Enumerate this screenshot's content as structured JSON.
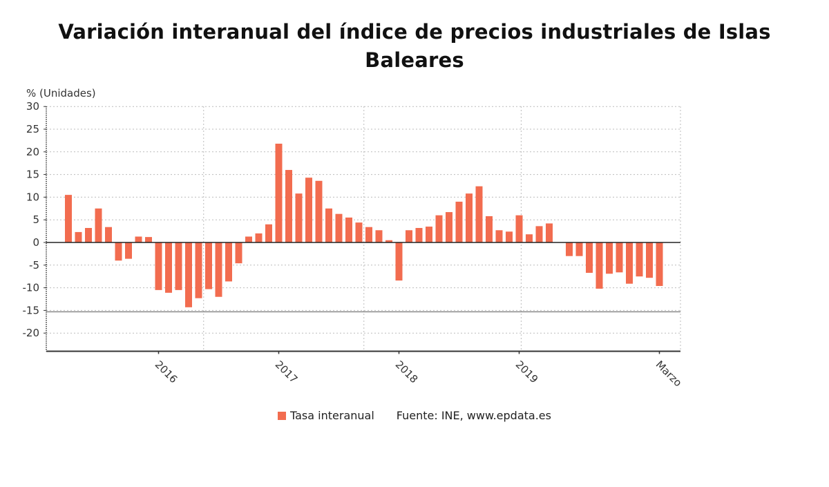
{
  "chart_data": {
    "type": "bar",
    "title": "Variación interanual del índice de precios industriales de Islas Baleares",
    "ylabel": "% (Unidades)",
    "xlabel": "",
    "ylim": [
      -24,
      30
    ],
    "yticks": [
      30,
      25,
      20,
      15,
      10,
      5,
      0,
      -5,
      -10,
      -15,
      -20
    ],
    "grid": true,
    "legend_position": "bottom",
    "x_start": "2015-04",
    "x_end": "2020-03",
    "xtick_labels": [
      {
        "label": "2016",
        "index": 9
      },
      {
        "label": "2017",
        "index": 21
      },
      {
        "label": "2018",
        "index": 33
      },
      {
        "label": "2019",
        "index": 45
      },
      {
        "label": "Marzo",
        "index": 59
      }
    ],
    "x": [
      "2015-04",
      "2015-05",
      "2015-06",
      "2015-07",
      "2015-08",
      "2015-09",
      "2015-10",
      "2015-11",
      "2015-12",
      "2016-01",
      "2016-02",
      "2016-03",
      "2016-04",
      "2016-05",
      "2016-06",
      "2016-07",
      "2016-08",
      "2016-09",
      "2016-10",
      "2016-11",
      "2016-12",
      "2017-01",
      "2017-02",
      "2017-03",
      "2017-04",
      "2017-05",
      "2017-06",
      "2017-07",
      "2017-08",
      "2017-09",
      "2017-10",
      "2017-11",
      "2017-12",
      "2018-01",
      "2018-02",
      "2018-03",
      "2018-04",
      "2018-05",
      "2018-06",
      "2018-07",
      "2018-08",
      "2018-09",
      "2018-10",
      "2018-11",
      "2018-12",
      "2019-01",
      "2019-02",
      "2019-03",
      "2019-04",
      "2019-05",
      "2019-06",
      "2019-07",
      "2019-08",
      "2019-09",
      "2019-10",
      "2019-11",
      "2019-12",
      "2020-01",
      "2020-02",
      "2020-03"
    ],
    "series": [
      {
        "name": "Tasa interanual",
        "color": "#f26c4f",
        "values": [
          10.5,
          2.3,
          3.2,
          7.5,
          3.4,
          -4.0,
          -3.6,
          1.3,
          1.2,
          -10.5,
          -11.1,
          -10.5,
          -14.3,
          -12.3,
          -10.3,
          -12.0,
          -8.6,
          -4.6,
          1.3,
          2.0,
          4.0,
          21.8,
          16.0,
          10.8,
          14.3,
          13.6,
          7.5,
          6.3,
          5.5,
          4.4,
          3.4,
          2.7,
          0.5,
          -8.4,
          2.7,
          3.2,
          3.5,
          6.0,
          6.7,
          9.0,
          10.8,
          12.4,
          5.8,
          2.7,
          2.4,
          6.0,
          1.8,
          3.6,
          4.2,
          0.0,
          -3.0,
          -3.0,
          -6.7,
          -10.2,
          -6.9,
          -6.6,
          -9.1,
          -7.5,
          -7.8,
          -9.6
        ]
      }
    ],
    "reference_line": -15.3,
    "source": "Fuente: INE, www.epdata.es"
  },
  "title_line1": "Variación interanual del índice de precios industriales de Islas",
  "title_line2": "Baleares",
  "legend": {
    "series_label": "Tasa interanual",
    "source": "Fuente: INE, www.epdata.es"
  }
}
